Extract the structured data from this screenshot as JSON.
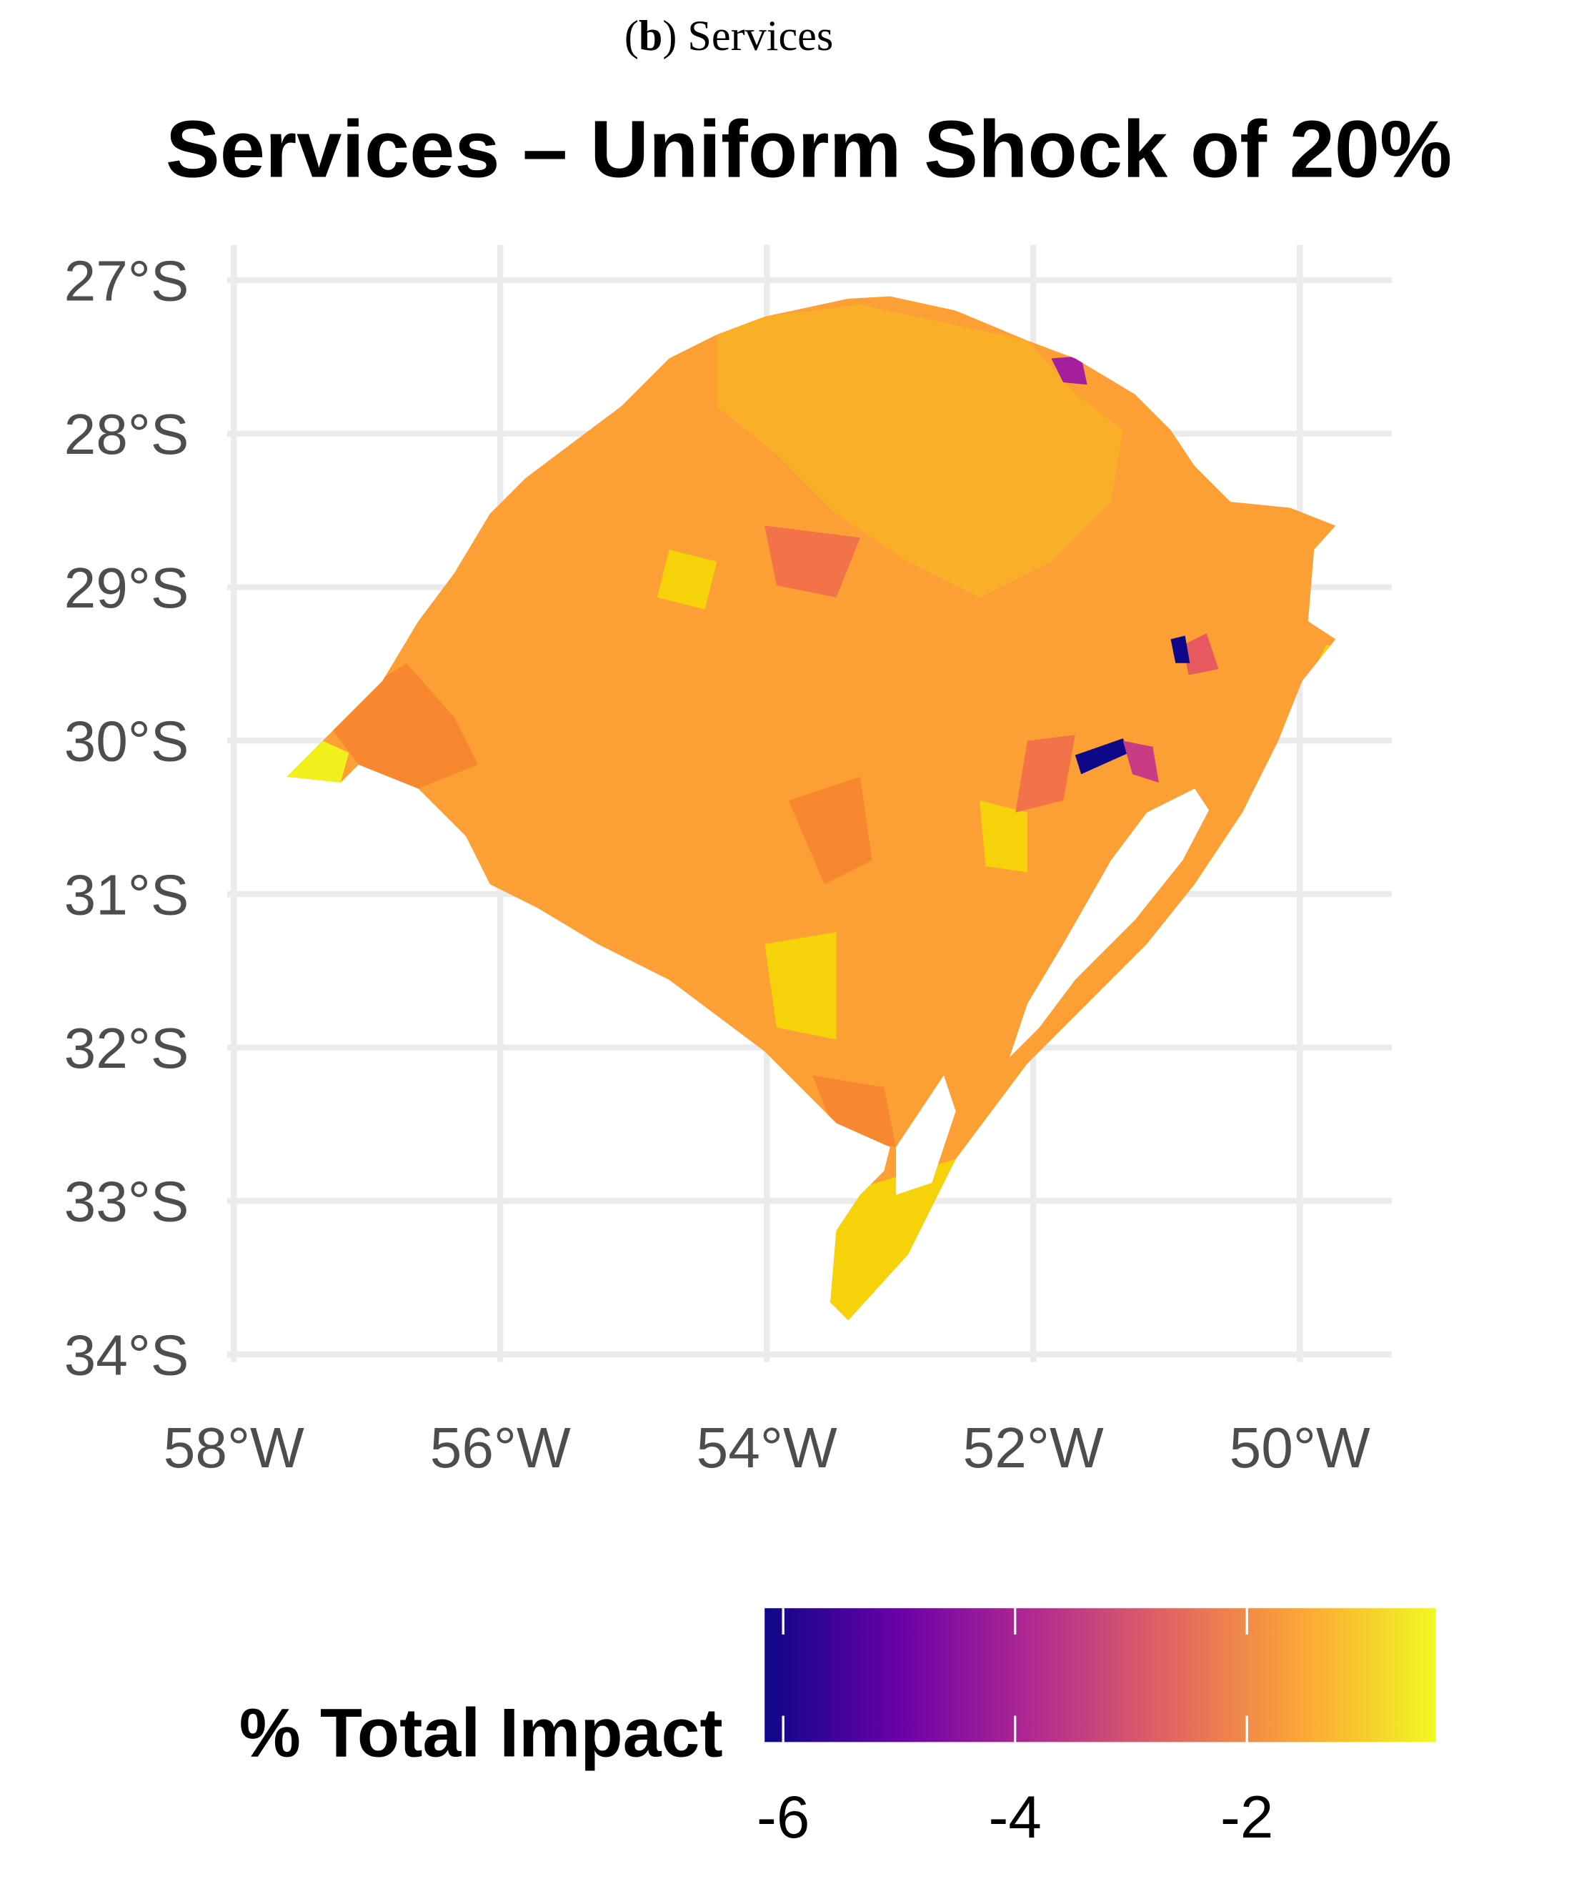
{
  "caption": {
    "label": "b",
    "text": "Services"
  },
  "chart_data": {
    "type": "map",
    "title": "Services – Uniform Shock of 20%",
    "xlim": [
      -58.05,
      -49.31
    ],
    "ylim": [
      -34.05,
      -26.77
    ],
    "xticks": [
      {
        "value": -58,
        "label": "58°W"
      },
      {
        "value": -56,
        "label": "56°W"
      },
      {
        "value": -54,
        "label": "54°W"
      },
      {
        "value": -52,
        "label": "52°W"
      },
      {
        "value": -50,
        "label": "50°W"
      }
    ],
    "yticks": [
      {
        "value": -27,
        "label": "27°S"
      },
      {
        "value": -28,
        "label": "28°S"
      },
      {
        "value": -29,
        "label": "29°S"
      },
      {
        "value": -30,
        "label": "30°S"
      },
      {
        "value": -31,
        "label": "31°S"
      },
      {
        "value": -32,
        "label": "32°S"
      },
      {
        "value": -33,
        "label": "33°S"
      },
      {
        "value": -34,
        "label": "34°S"
      }
    ],
    "grid": true,
    "legend": {
      "title": "% Total Impact",
      "position": "bottom",
      "colorbar_lim": [
        -6.16,
        -0.37
      ],
      "ticks": [
        -6,
        -4,
        -2
      ],
      "colors": [
        "#0d0887",
        "#6a00a8",
        "#b12a90",
        "#e16462",
        "#fca636",
        "#f0f921"
      ]
    }
  }
}
